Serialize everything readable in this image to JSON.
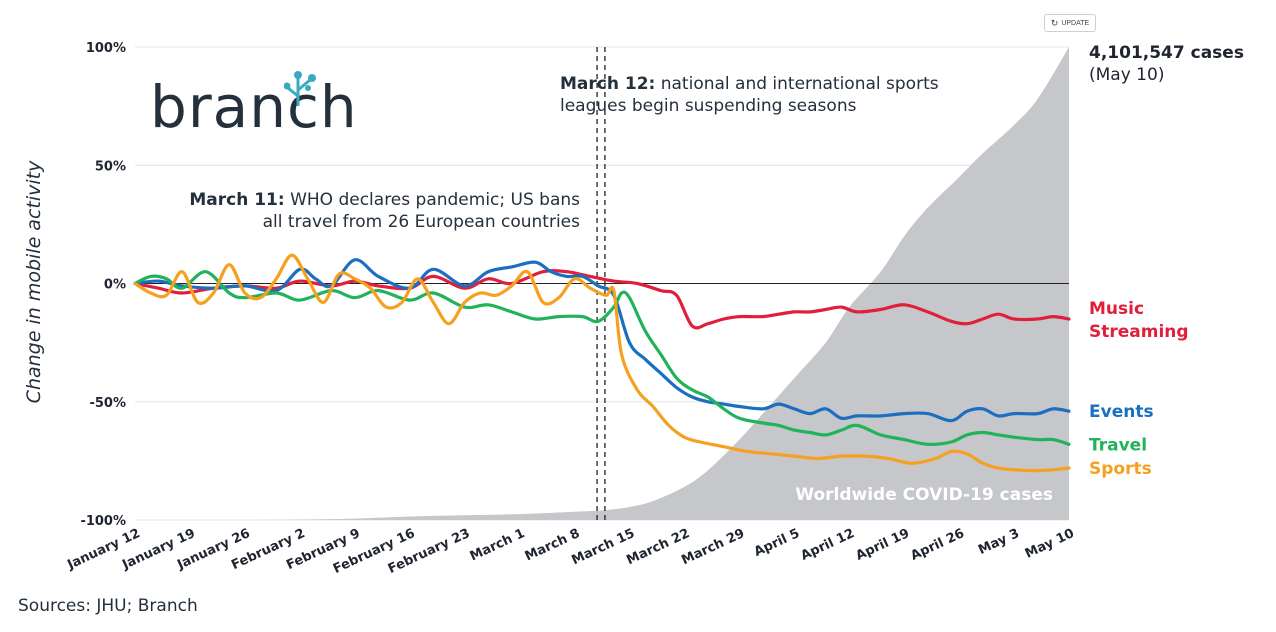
{
  "update_button": {
    "label": "UPDATE",
    "icon": "refresh-icon"
  },
  "logo": {
    "text": "branch"
  },
  "annotations": {
    "march12": {
      "bold": "March 12:",
      "line1": " national and international sports",
      "line2": "leagues begin suspending seasons"
    },
    "march11": {
      "bold": "March 11:",
      "line1": " WHO declares pandemic; US bans",
      "line2": "all travel from 26 European countries"
    }
  },
  "cases_label": {
    "count": "4,101,547 cases",
    "date": "(May 10)"
  },
  "area_label": "Worldwide COVID-19 cases",
  "sources": "Sources: JHU; Branch",
  "colors": {
    "music": "#e0203a",
    "events": "#1b6fc0",
    "travel": "#22b25a",
    "sports": "#f5a11f",
    "cases_area": "#c6c7ca",
    "text": "#1f2430"
  },
  "chart_data": {
    "type": "line",
    "title": "",
    "ylabel": "Change in mobile activity",
    "xlabel": "",
    "ylim": [
      -100,
      100
    ],
    "xlim": [
      0,
      119
    ],
    "x_unit": "days since January 12",
    "yticks": [
      {
        "value": 100,
        "label": "100%"
      },
      {
        "value": 50,
        "label": "50%"
      },
      {
        "value": 0,
        "label": "0%"
      },
      {
        "value": -50,
        "label": "-50%"
      },
      {
        "value": -100,
        "label": "-100%"
      }
    ],
    "xticks": [
      {
        "value": 0,
        "label": "January 12"
      },
      {
        "value": 7,
        "label": "January 19"
      },
      {
        "value": 14,
        "label": "January 26"
      },
      {
        "value": 21,
        "label": "February 2"
      },
      {
        "value": 28,
        "label": "February 9"
      },
      {
        "value": 35,
        "label": "February 16"
      },
      {
        "value": 42,
        "label": "February 23"
      },
      {
        "value": 49,
        "label": "March 1"
      },
      {
        "value": 56,
        "label": "March 8"
      },
      {
        "value": 63,
        "label": "March 15"
      },
      {
        "value": 70,
        "label": "March 22"
      },
      {
        "value": 77,
        "label": "March 29"
      },
      {
        "value": 84,
        "label": "April 5"
      },
      {
        "value": 91,
        "label": "April 12"
      },
      {
        "value": 98,
        "label": "April 19"
      },
      {
        "value": 105,
        "label": "April 26"
      },
      {
        "value": 112,
        "label": "May 3"
      },
      {
        "value": 119,
        "label": "May 10"
      }
    ],
    "events": [
      {
        "name": "march-11",
        "x": 59
      },
      {
        "name": "march-12",
        "x": 60
      }
    ],
    "area": {
      "name": "Worldwide COVID-19 cases",
      "note": "scaled so 4,101,547 cases on May 10 = 100%",
      "points": [
        [
          0,
          -100
        ],
        [
          14,
          -100
        ],
        [
          21,
          -99.8
        ],
        [
          28,
          -99.4
        ],
        [
          35,
          -98.5
        ],
        [
          42,
          -98
        ],
        [
          49,
          -97.5
        ],
        [
          56,
          -96.5
        ],
        [
          60,
          -95.8
        ],
        [
          63,
          -94.5
        ],
        [
          66,
          -92
        ],
        [
          70,
          -86
        ],
        [
          73,
          -79
        ],
        [
          77,
          -66
        ],
        [
          80,
          -55
        ],
        [
          84,
          -40
        ],
        [
          88,
          -25
        ],
        [
          91,
          -10
        ],
        [
          95,
          5
        ],
        [
          98,
          20
        ],
        [
          101,
          32
        ],
        [
          105,
          45
        ],
        [
          108,
          55
        ],
        [
          112,
          67
        ],
        [
          115,
          78
        ],
        [
          119,
          100
        ]
      ]
    },
    "series": [
      {
        "name": "Music Streaming",
        "label1": "Music",
        "label2": "Streaming",
        "color_key": "music",
        "points": [
          [
            0,
            0
          ],
          [
            3,
            -2
          ],
          [
            6,
            -4
          ],
          [
            10,
            -2
          ],
          [
            14,
            -1
          ],
          [
            18,
            -2
          ],
          [
            21,
            1
          ],
          [
            25,
            -1
          ],
          [
            28,
            1
          ],
          [
            31,
            -1
          ],
          [
            35,
            -2
          ],
          [
            38,
            3
          ],
          [
            42,
            -2
          ],
          [
            45,
            2
          ],
          [
            48,
            0
          ],
          [
            52,
            5
          ],
          [
            55,
            5
          ],
          [
            58,
            3
          ],
          [
            61,
            1
          ],
          [
            64,
            0
          ],
          [
            67,
            -3
          ],
          [
            69,
            -5
          ],
          [
            71,
            -18
          ],
          [
            73,
            -17
          ],
          [
            75,
            -15
          ],
          [
            77,
            -14
          ],
          [
            80,
            -14
          ],
          [
            82,
            -13
          ],
          [
            84,
            -12
          ],
          [
            86,
            -12
          ],
          [
            88,
            -11
          ],
          [
            90,
            -10
          ],
          [
            92,
            -12
          ],
          [
            95,
            -11
          ],
          [
            98,
            -9
          ],
          [
            101,
            -12
          ],
          [
            104,
            -16
          ],
          [
            106,
            -17
          ],
          [
            108,
            -15
          ],
          [
            110,
            -13
          ],
          [
            112,
            -15
          ],
          [
            115,
            -15
          ],
          [
            117,
            -14
          ],
          [
            119,
            -15
          ]
        ]
      },
      {
        "name": "Events",
        "label1": "Events",
        "color_key": "events",
        "points": [
          [
            0,
            0
          ],
          [
            3,
            1
          ],
          [
            6,
            -1
          ],
          [
            10,
            -2
          ],
          [
            14,
            -1
          ],
          [
            18,
            -3
          ],
          [
            21,
            6
          ],
          [
            23,
            2
          ],
          [
            25,
            -1
          ],
          [
            28,
            10
          ],
          [
            31,
            3
          ],
          [
            35,
            -2
          ],
          [
            38,
            6
          ],
          [
            42,
            -1
          ],
          [
            45,
            5
          ],
          [
            48,
            7
          ],
          [
            51,
            9
          ],
          [
            53,
            5
          ],
          [
            55,
            3
          ],
          [
            57,
            3
          ],
          [
            59,
            -1
          ],
          [
            61,
            -5
          ],
          [
            63,
            -25
          ],
          [
            65,
            -32
          ],
          [
            67,
            -38
          ],
          [
            69,
            -44
          ],
          [
            71,
            -48
          ],
          [
            73,
            -50
          ],
          [
            75,
            -51
          ],
          [
            77,
            -52
          ],
          [
            80,
            -53
          ],
          [
            82,
            -51
          ],
          [
            84,
            -53
          ],
          [
            86,
            -55
          ],
          [
            88,
            -53
          ],
          [
            90,
            -57
          ],
          [
            92,
            -56
          ],
          [
            95,
            -56
          ],
          [
            98,
            -55
          ],
          [
            101,
            -55
          ],
          [
            104,
            -58
          ],
          [
            106,
            -54
          ],
          [
            108,
            -53
          ],
          [
            110,
            -56
          ],
          [
            112,
            -55
          ],
          [
            115,
            -55
          ],
          [
            117,
            -53
          ],
          [
            119,
            -54
          ]
        ]
      },
      {
        "name": "Travel",
        "label1": "Travel",
        "color_key": "travel",
        "points": [
          [
            0,
            0
          ],
          [
            2,
            3
          ],
          [
            4,
            2
          ],
          [
            6,
            -2
          ],
          [
            9,
            5
          ],
          [
            12,
            -4
          ],
          [
            14,
            -6
          ],
          [
            18,
            -4
          ],
          [
            21,
            -7
          ],
          [
            25,
            -3
          ],
          [
            28,
            -6
          ],
          [
            31,
            -3
          ],
          [
            35,
            -7
          ],
          [
            38,
            -4
          ],
          [
            42,
            -10
          ],
          [
            45,
            -9
          ],
          [
            48,
            -12
          ],
          [
            51,
            -15
          ],
          [
            54,
            -14
          ],
          [
            57,
            -14
          ],
          [
            59,
            -16
          ],
          [
            61,
            -10
          ],
          [
            62,
            -4
          ],
          [
            63,
            -6
          ],
          [
            65,
            -20
          ],
          [
            67,
            -30
          ],
          [
            69,
            -40
          ],
          [
            71,
            -45
          ],
          [
            73,
            -48
          ],
          [
            75,
            -53
          ],
          [
            77,
            -57
          ],
          [
            80,
            -59
          ],
          [
            82,
            -60
          ],
          [
            84,
            -62
          ],
          [
            86,
            -63
          ],
          [
            88,
            -64
          ],
          [
            90,
            -62
          ],
          [
            92,
            -60
          ],
          [
            95,
            -64
          ],
          [
            98,
            -66
          ],
          [
            101,
            -68
          ],
          [
            104,
            -67
          ],
          [
            106,
            -64
          ],
          [
            108,
            -63
          ],
          [
            110,
            -64
          ],
          [
            112,
            -65
          ],
          [
            115,
            -66
          ],
          [
            117,
            -66
          ],
          [
            119,
            -68
          ]
        ]
      },
      {
        "name": "Sports",
        "label1": "Sports",
        "color_key": "sports",
        "points": [
          [
            0,
            0
          ],
          [
            2,
            -4
          ],
          [
            4,
            -5
          ],
          [
            6,
            5
          ],
          [
            8,
            -8
          ],
          [
            10,
            -4
          ],
          [
            12,
            8
          ],
          [
            14,
            -4
          ],
          [
            16,
            -6
          ],
          [
            18,
            2
          ],
          [
            20,
            12
          ],
          [
            22,
            2
          ],
          [
            24,
            -8
          ],
          [
            26,
            4
          ],
          [
            28,
            2
          ],
          [
            30,
            -2
          ],
          [
            32,
            -10
          ],
          [
            34,
            -8
          ],
          [
            36,
            2
          ],
          [
            38,
            -8
          ],
          [
            40,
            -17
          ],
          [
            42,
            -8
          ],
          [
            44,
            -4
          ],
          [
            46,
            -5
          ],
          [
            48,
            -1
          ],
          [
            50,
            5
          ],
          [
            52,
            -8
          ],
          [
            54,
            -6
          ],
          [
            56,
            2
          ],
          [
            58,
            -2
          ],
          [
            60,
            -5
          ],
          [
            61,
            -3
          ],
          [
            62,
            -30
          ],
          [
            64,
            -45
          ],
          [
            66,
            -52
          ],
          [
            68,
            -60
          ],
          [
            70,
            -65
          ],
          [
            72,
            -67
          ],
          [
            75,
            -69
          ],
          [
            78,
            -71
          ],
          [
            81,
            -72
          ],
          [
            84,
            -73
          ],
          [
            87,
            -74
          ],
          [
            90,
            -73
          ],
          [
            93,
            -73
          ],
          [
            96,
            -74
          ],
          [
            99,
            -76
          ],
          [
            102,
            -74
          ],
          [
            104,
            -71
          ],
          [
            106,
            -72
          ],
          [
            108,
            -76
          ],
          [
            110,
            -78
          ],
          [
            113,
            -79
          ],
          [
            116,
            -79
          ],
          [
            119,
            -78
          ]
        ]
      }
    ]
  }
}
